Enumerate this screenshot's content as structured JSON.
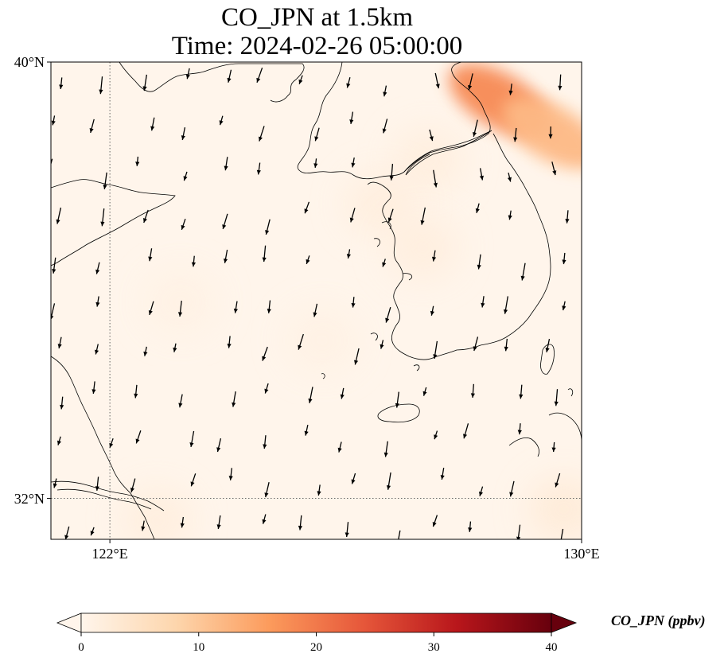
{
  "title_line1": "CO_JPN at 1.5km",
  "title_line2": "Time: 2024-02-26 05:00:00",
  "map": {
    "lon_range": [
      121.0,
      130.0
    ],
    "lat_range": [
      31.25,
      40.0
    ],
    "lon_ticks": [
      {
        "value": 122,
        "label": "122°E"
      },
      {
        "value": 130,
        "label": "130°E"
      }
    ],
    "lat_ticks": [
      {
        "value": 40,
        "label": "40°N"
      },
      {
        "value": 32,
        "label": "32°N"
      }
    ],
    "gridlines": {
      "lon": [
        122
      ],
      "lat": [
        32
      ],
      "style": "dotted"
    },
    "background_color": "#fff5eb",
    "coastline_color": "#000000",
    "wind_arrow_color": "#000000"
  },
  "colorbar": {
    "label": "CO_JPN (ppbv)",
    "min": 0,
    "max": 40,
    "extend": "both",
    "ticks": [
      {
        "value": 0,
        "label": "0"
      },
      {
        "value": 10,
        "label": "10"
      },
      {
        "value": 20,
        "label": "20"
      },
      {
        "value": 30,
        "label": "30"
      },
      {
        "value": 40,
        "label": "40"
      }
    ],
    "colormap": "Oranges-Reds",
    "stops": [
      "#fff5eb",
      "#fdd6ad",
      "#fc9b5c",
      "#e6573a",
      "#b8161b",
      "#67000d"
    ]
  },
  "chart_data": {
    "type": "heatmap",
    "title": "CO_JPN at 1.5km\nTime: 2024-02-26 05:00:00",
    "colorbar_label": "CO_JPN (ppbv)",
    "value_range": [
      0,
      40
    ],
    "lon_range": [
      121.0,
      130.0
    ],
    "lat_range": [
      31.25,
      40.0
    ],
    "plumes": [
      {
        "lon": 128.6,
        "lat": 39.3,
        "value": 18
      },
      {
        "lon": 129.5,
        "lat": 38.7,
        "value": 12
      },
      {
        "lon": 127.4,
        "lat": 38.2,
        "value": 2
      },
      {
        "lon": 126.6,
        "lat": 37.4,
        "value": 2
      },
      {
        "lon": 127.3,
        "lat": 36.6,
        "value": 2
      },
      {
        "lon": 129.7,
        "lat": 31.8,
        "value": 3
      },
      {
        "lon": 122.8,
        "lat": 31.6,
        "value": 2
      },
      {
        "lon": 123.2,
        "lat": 35.6,
        "value": 1
      },
      {
        "lon": 125.6,
        "lat": 34.9,
        "value": 1
      }
    ]
  }
}
